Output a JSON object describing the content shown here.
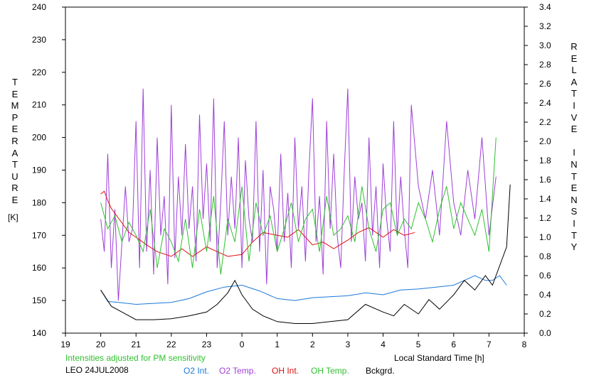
{
  "chart_data": {
    "type": "line",
    "xlabel": "Local Standard Time [h]",
    "ylabel_left": "TEMPERATURE",
    "ylabel_left_unit": "[K]",
    "ylabel_right": "RELATIVE INTENSITY",
    "note": "Intensities adjusted for PM sensitivity",
    "station_date": "LEO 24JUL2008",
    "x_ticks": [
      "19",
      "20",
      "21",
      "22",
      "23",
      "0",
      "1",
      "2",
      "3",
      "4",
      "5",
      "6",
      "7",
      "8"
    ],
    "y_left_ticks": [
      "140",
      "150",
      "160",
      "170",
      "180",
      "190",
      "200",
      "210",
      "220",
      "230",
      "240"
    ],
    "y_right_ticks": [
      "0.0",
      "0.2",
      "0.4",
      "0.6",
      "0.8",
      "1.0",
      "1.2",
      "1.4",
      "1.6",
      "1.8",
      "2.0",
      "2.2",
      "2.4",
      "2.6",
      "2.8",
      "3.0",
      "3.2",
      "3.4"
    ],
    "xlim": [
      19,
      32
    ],
    "ylim_left": [
      140,
      240
    ],
    "ylim_right": [
      0.0,
      3.4
    ],
    "grid": false,
    "series": [
      {
        "name": "O2 Int.",
        "axis": "right",
        "color": "#1a78d8",
        "x": [
          20.0,
          20.2,
          20.5,
          21.0,
          21.5,
          22.0,
          22.5,
          23.0,
          23.5,
          24.0,
          24.5,
          25.0,
          25.5,
          26.0,
          26.5,
          27.0,
          27.5,
          28.0,
          28.5,
          29.0,
          29.5,
          30.0,
          30.3,
          30.6,
          30.9,
          31.1,
          31.3,
          31.5
        ],
        "y": [
          0.45,
          0.33,
          0.32,
          0.3,
          0.31,
          0.32,
          0.36,
          0.43,
          0.48,
          0.5,
          0.44,
          0.36,
          0.34,
          0.37,
          0.38,
          0.39,
          0.42,
          0.4,
          0.45,
          0.46,
          0.48,
          0.5,
          0.55,
          0.6,
          0.55,
          0.55,
          0.6,
          0.5
        ]
      },
      {
        "name": "O2 Temp.",
        "axis": "left",
        "color": "#9e3fd6",
        "x": [
          20.0,
          20.1,
          20.2,
          20.3,
          20.4,
          20.5,
          20.7,
          20.8,
          20.9,
          21.0,
          21.1,
          21.2,
          21.3,
          21.4,
          21.5,
          21.6,
          21.7,
          21.8,
          21.9,
          22.0,
          22.1,
          22.2,
          22.3,
          22.4,
          22.5,
          22.6,
          22.7,
          22.8,
          22.9,
          23.0,
          23.1,
          23.2,
          23.3,
          23.4,
          23.5,
          23.6,
          23.7,
          23.8,
          23.9,
          24.0,
          24.1,
          24.2,
          24.3,
          24.4,
          24.5,
          24.6,
          24.7,
          24.8,
          24.9,
          25.0,
          25.1,
          25.2,
          25.3,
          25.4,
          25.5,
          25.6,
          25.7,
          25.8,
          25.9,
          26.0,
          26.1,
          26.2,
          26.3,
          26.4,
          26.5,
          26.6,
          26.7,
          26.8,
          26.9,
          27.0,
          27.1,
          27.2,
          27.3,
          27.4,
          27.5,
          27.6,
          27.7,
          27.8,
          27.9,
          28.0,
          28.1,
          28.2,
          28.3,
          28.4,
          28.5,
          28.6,
          28.7,
          28.8,
          29.0,
          29.2,
          29.4,
          29.6,
          29.8,
          30.0,
          30.2,
          30.4,
          30.6,
          30.8,
          31.0,
          31.2
        ],
        "y": [
          175,
          165,
          195,
          160,
          178,
          150,
          185,
          168,
          172,
          205,
          160,
          215,
          165,
          190,
          158,
          200,
          170,
          182,
          155,
          210,
          163,
          188,
          170,
          198,
          172,
          185,
          162,
          207,
          175,
          192,
          168,
          212,
          160,
          180,
          205,
          170,
          188,
          172,
          200,
          160,
          193,
          175,
          168,
          205,
          165,
          190,
          155,
          185,
          178,
          165,
          195,
          168,
          183,
          160,
          200,
          172,
          185,
          162,
          190,
          212,
          168,
          182,
          158,
          205,
          172,
          195,
          170,
          160,
          190,
          215,
          168,
          188,
          175,
          180,
          162,
          200,
          170,
          185,
          160,
          192,
          175,
          165,
          205,
          170,
          188,
          172,
          160,
          210,
          185,
          175,
          190,
          170,
          205,
          180,
          170,
          190,
          175,
          200,
          170,
          188
        ]
      },
      {
        "name": "OH Int.",
        "axis": "right",
        "color": "#e01010",
        "x": [
          20.0,
          20.1,
          20.2,
          20.3,
          20.5,
          20.8,
          21.0,
          21.3,
          21.6,
          22.0,
          22.3,
          22.6,
          23.0,
          23.3,
          23.6,
          24.0,
          24.3,
          24.6,
          25.0,
          25.3,
          25.6,
          26.0,
          26.3,
          26.6,
          27.0,
          27.3,
          27.6,
          28.0,
          28.3,
          28.6,
          28.9
        ],
        "y": [
          1.45,
          1.48,
          1.38,
          1.3,
          1.2,
          1.05,
          1.0,
          0.92,
          0.85,
          0.8,
          0.88,
          0.8,
          0.9,
          0.85,
          0.8,
          0.82,
          0.95,
          1.05,
          1.02,
          1.0,
          1.08,
          0.92,
          0.95,
          0.88,
          0.97,
          1.05,
          1.1,
          1.0,
          1.08,
          1.02,
          1.05
        ]
      },
      {
        "name": "OH Temp.",
        "axis": "left",
        "color": "#2fc02f",
        "x": [
          20.0,
          20.2,
          20.4,
          20.6,
          20.8,
          21.0,
          21.2,
          21.4,
          21.6,
          21.8,
          22.0,
          22.2,
          22.4,
          22.6,
          22.8,
          23.0,
          23.2,
          23.4,
          23.6,
          23.8,
          24.0,
          24.2,
          24.4,
          24.6,
          24.8,
          25.0,
          25.2,
          25.4,
          25.6,
          25.8,
          26.0,
          26.2,
          26.4,
          26.6,
          26.8,
          27.0,
          27.2,
          27.4,
          27.6,
          27.8,
          28.0,
          28.2,
          28.4,
          28.6,
          28.8,
          29.0,
          29.2,
          29.4,
          29.6,
          29.8,
          30.0,
          30.2,
          30.4,
          30.6,
          30.8,
          31.0,
          31.2
        ],
        "y": [
          180,
          172,
          176,
          168,
          174,
          170,
          165,
          178,
          160,
          172,
          168,
          162,
          175,
          160,
          178,
          165,
          182,
          158,
          175,
          168,
          185,
          162,
          180,
          170,
          176,
          165,
          172,
          180,
          168,
          175,
          178,
          165,
          182,
          170,
          172,
          176,
          168,
          185,
          172,
          165,
          178,
          180,
          170,
          175,
          172,
          180,
          175,
          168,
          178,
          185,
          172,
          180,
          175,
          170,
          178,
          165,
          200
        ]
      },
      {
        "name": "Bckgrd.",
        "axis": "right",
        "color": "#000000",
        "x": [
          20.0,
          20.3,
          20.6,
          21.0,
          21.5,
          22.0,
          22.5,
          23.0,
          23.3,
          23.6,
          23.8,
          24.0,
          24.3,
          24.6,
          25.0,
          25.5,
          26.0,
          26.5,
          27.0,
          27.5,
          28.0,
          28.3,
          28.6,
          29.0,
          29.3,
          29.6,
          30.0,
          30.3,
          30.6,
          30.9,
          31.1,
          31.3,
          31.5,
          31.6
        ],
        "y": [
          0.45,
          0.28,
          0.22,
          0.14,
          0.14,
          0.15,
          0.18,
          0.22,
          0.3,
          0.42,
          0.55,
          0.4,
          0.25,
          0.18,
          0.12,
          0.1,
          0.1,
          0.12,
          0.14,
          0.3,
          0.22,
          0.18,
          0.3,
          0.2,
          0.35,
          0.25,
          0.4,
          0.55,
          0.45,
          0.6,
          0.5,
          0.7,
          0.9,
          1.55
        ]
      }
    ]
  }
}
